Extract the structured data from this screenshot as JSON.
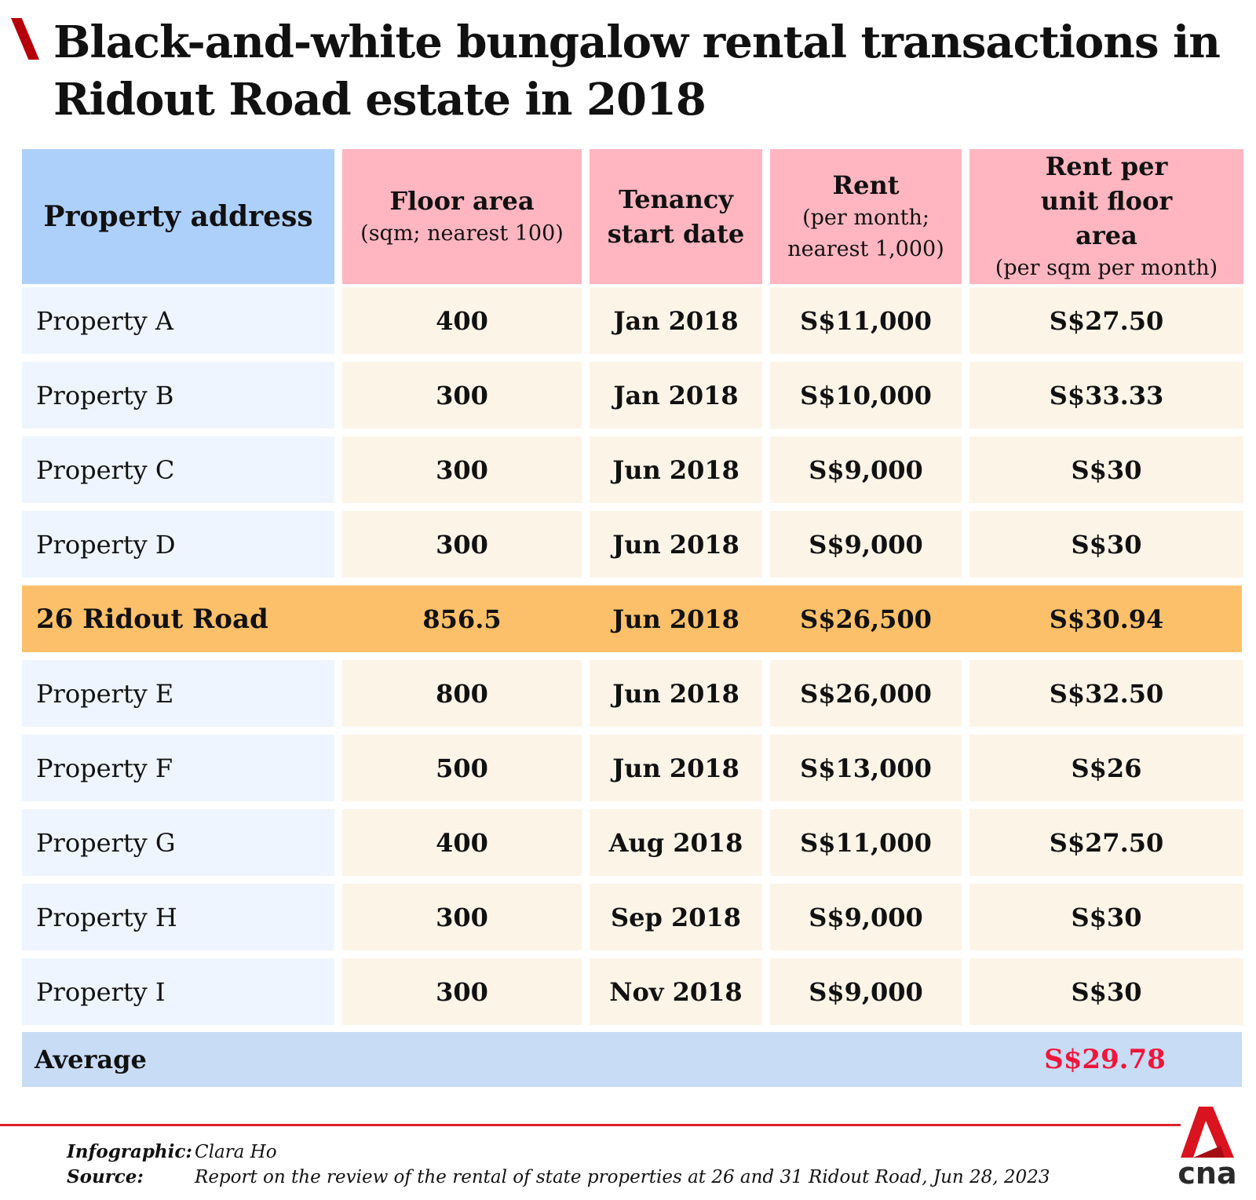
{
  "title": "Black-and-white bungalow rental transactions in Ridout Road estate in 2018",
  "headers": [
    {
      "main": "Property address",
      "sub": ""
    },
    {
      "main": "Floor area",
      "sub": "(sqm; nearest 100)"
    },
    {
      "main": "Tenancy start date",
      "sub": ""
    },
    {
      "main": "Rent",
      "sub": "(per month; nearest 1,000)"
    },
    {
      "main": "Rent per unit floor area",
      "sub": "(per sqm per month)"
    }
  ],
  "rows": [
    [
      "Property A",
      "400",
      "Jan 2018",
      "S$11,000",
      "S$27.50"
    ],
    [
      "Property B",
      "300",
      "Jan 2018",
      "S$10,000",
      "S$33.33"
    ],
    [
      "Property C",
      "300",
      "Jun 2018",
      "S$9,000",
      "S$30"
    ],
    [
      "Property D",
      "300",
      "Jun 2018",
      "S$9,000",
      "S$30"
    ],
    [
      "26 Ridout Road",
      "856.5",
      "Jun 2018",
      "S$26,500",
      "S$30.94"
    ],
    [
      "Property E",
      "800",
      "Jun 2018",
      "S$26,000",
      "S$32.50"
    ],
    [
      "Property F",
      "500",
      "Jun 2018",
      "S$13,000",
      "S$26"
    ],
    [
      "Property G",
      "400",
      "Aug 2018",
      "S$11,000",
      "S$27.50"
    ],
    [
      "Property H",
      "300",
      "Sep 2018",
      "S$9,000",
      "S$30"
    ],
    [
      "Property I",
      "300",
      "Nov 2018",
      "S$9,000",
      "S$30"
    ]
  ],
  "highlight_row": 4,
  "average": {
    "label": "Average",
    "value": "S$29.78"
  },
  "footer": {
    "infographic_label": "Infographic:",
    "infographic": "Clara Ho",
    "source_label": "Source:",
    "source": "Report on the review of the rental of state properties at 26 and 31 Ridout Road, Jun 28, 2023"
  },
  "logo": "cna",
  "colors": {
    "header_blue": "#add0fb",
    "header_pink": "#ffb6c1",
    "highlight": "#fdc06a",
    "average_bg": "#c8dcf5",
    "accent_red": "#f0153a"
  }
}
